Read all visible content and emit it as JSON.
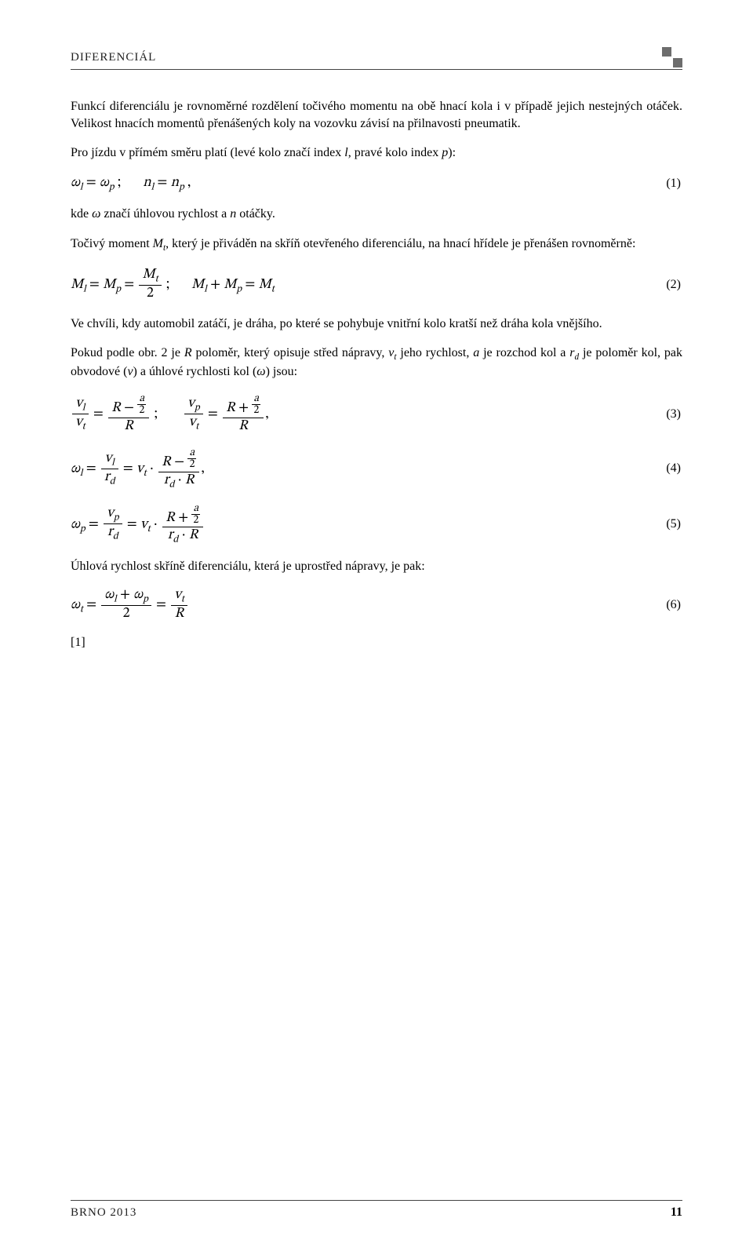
{
  "header": {
    "section": "DIFERENCIÁL"
  },
  "footer": {
    "left": "BRNO 2013",
    "page": "11"
  },
  "p1": "Funkcí diferenciálu je rovnoměrné rozdělení točivého momentu na obě hnací kola i v případě jejich nestejných otáček. Velikost hnacích momentů přenášených koly na vozovku závisí na přilnavosti pneumatik.",
  "p2_prefix": "Pro jízdu v přímém směru platí (levé kolo značí index ",
  "p2_l": "l",
  "p2_mid": ", pravé kolo index ",
  "p2_p": "p",
  "p2_suffix": "):",
  "eq1": {
    "text": "ωₗ = ωₚ ;    nₗ = nₚ ,",
    "num": "(1)"
  },
  "p3_prefix": "kde  ",
  "p3_omega": "ω",
  "p3_mid": " značí úhlovou rychlost a  ",
  "p3_n": "n",
  "p3_suffix": " otáčky.",
  "p4_a": "Točivý moment ",
  "p4_M": "M",
  "p4_sub": "t",
  "p4_b": ", který je přiváděn na skříň otevřeného diferenciálu, na hnací hřídele je přenášen rovnoměrně:",
  "eq2": {
    "left1_lhs": "Mₗ = Mₚ = ",
    "left1_frac_num": "Mₜ",
    "left1_frac_den": "2",
    "sep": " ;",
    "right": "Mₗ + Mₚ = Mₜ",
    "num": "(2)"
  },
  "p5": "Ve chvíli, kdy automobil zatáčí, je dráha, po které se pohybuje vnitřní kolo kratší než dráha kola vnějšího.",
  "p6": {
    "a": "Pokud podle obr. 2 je ",
    "R": "R",
    "b": " poloměr, který opisuje střed nápravy, ",
    "vt": "v",
    "vt_sub": "t",
    "c": " jeho rychlost, ",
    "aa": "a",
    "d": " je rozchod kol a ",
    "rd": "r",
    "rd_sub": "d",
    "e": " je poloměr kol, pak obvodové (",
    "v": "v",
    "f": ") a úhlové rychlosti kol (",
    "omega": "ω",
    "g": ") jsou:"
  },
  "eq3": {
    "num": "(3)",
    "frac1_num": "vₗ",
    "frac1_den": "vₜ",
    "frac2_num_left": "R − ",
    "frac2_num_a": "a",
    "frac2_num_2": "2",
    "frac2_den": "R",
    "sep": " ;",
    "frac3_num": "vₚ",
    "frac3_den": "vₜ",
    "frac4_num_left": "R + ",
    "comma": ","
  },
  "eq4": {
    "num": "(4)",
    "lhs": "ωₗ = ",
    "f1_num": "vₗ",
    "f1_den": "r_d",
    "mid": " = vₜ · ",
    "f2_num_left": "R − ",
    "f2_num_a": "a",
    "f2_num_2": "2",
    "f2_den": "r_d · R",
    "comma": ","
  },
  "eq5": {
    "num": "(5)",
    "lhs": "ωₚ = ",
    "f1_num": "vₚ",
    "f1_den": "r_d",
    "mid": " = vₜ · ",
    "f2_num_left": "R + ",
    "f2_num_a": "a",
    "f2_num_2": "2",
    "f2_den": "r_d · R"
  },
  "p7": "Úhlová rychlost skříně diferenciálu, která je uprostřed nápravy, je pak:",
  "eq6": {
    "num": "(6)",
    "lhs": "ωₜ = ",
    "f1_num": "ωₗ + ωₚ",
    "f1_den": "2",
    "eq": " = ",
    "f2_num": "vₜ",
    "f2_den": "R"
  },
  "ref": "[1]"
}
